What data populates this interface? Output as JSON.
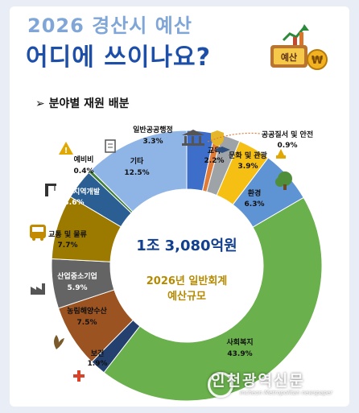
{
  "header": {
    "title_line1": "2026 경산시 예산",
    "title_line2": "어디에 쓰이나요?"
  },
  "section": {
    "subhead": "➢ 분야별 재원 배분"
  },
  "badge": {
    "label": "예산"
  },
  "center": {
    "amount": "1조 3,080억원",
    "desc_line1": "2026년 일반회계",
    "desc_line2": "예산규모"
  },
  "watermark": {
    "name": "인천광역신문",
    "english": "Incheon Metropolitan newspaper"
  },
  "colors": {
    "accent_light": "#7fa6d6",
    "accent_dark": "#1e4fa8",
    "center_amount": "#123f8f",
    "center_desc": "#b58a00"
  },
  "chart_data": {
    "type": "pie",
    "donut": true,
    "title": "",
    "total": "1조 3,080억원",
    "unit": "%",
    "categories": [
      "일반공공행정",
      "공공질서 및 안전",
      "교육",
      "문화 및 관광",
      "환경",
      "사회복지",
      "보건",
      "농림해양수산",
      "산업중소기업",
      "교통 및 물류",
      "국토 및 지역개발",
      "예비비",
      "기타"
    ],
    "values": [
      3.3,
      0.9,
      2.2,
      3.9,
      6.3,
      43.9,
      1.9,
      7.5,
      5.9,
      7.7,
      3.6,
      0.4,
      12.5
    ],
    "value_labels": [
      "3.3%",
      "0.9%",
      "2.2%",
      "3.9%",
      "6.3%",
      "43.9%",
      "1.9%",
      "7.5%",
      "5.9%",
      "7.7%",
      "3.6%",
      "0.4%",
      "12.5%"
    ],
    "colors": [
      "#3d6ec9",
      "#e07b39",
      "#9ea3a8",
      "#f5bf14",
      "#5e93d4",
      "#6ab04c",
      "#24406e",
      "#9a5321",
      "#646464",
      "#9c7a00",
      "#2b5f93",
      "#3f7f3a",
      "#8fb4e6"
    ],
    "icons": [
      "government-building-icon",
      "shield-icon",
      "graduation-cap-icon",
      "",
      "tree-icon",
      "hand-heart-icon",
      "plus-cross-icon",
      "sprout-icon",
      "factory-icon",
      "bus-icon",
      "crane-icon",
      "warning-icon",
      "document-icon"
    ]
  }
}
